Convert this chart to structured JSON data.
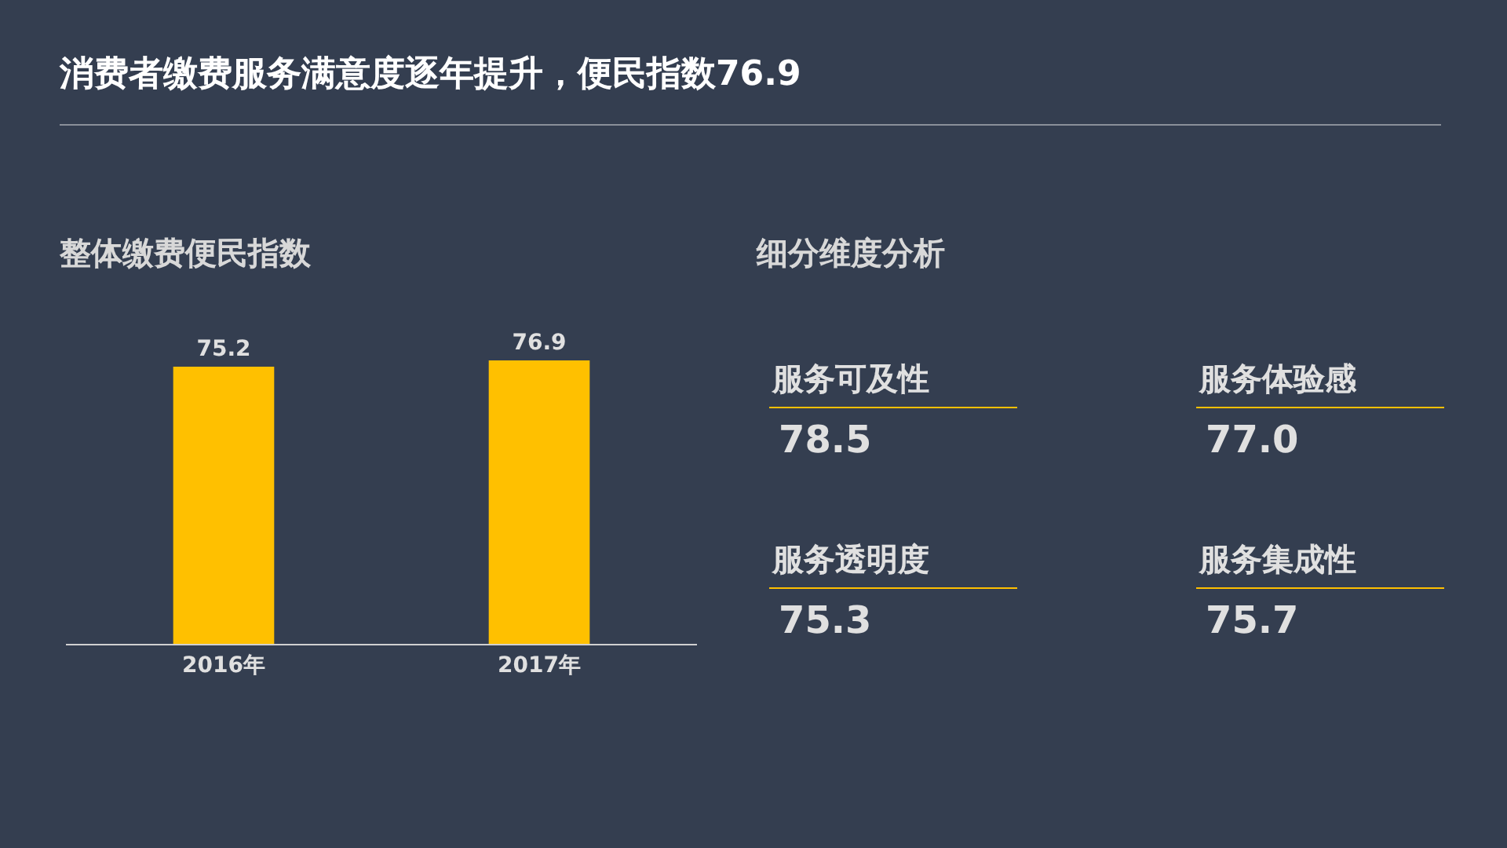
{
  "chart_data": [
    {
      "type": "bar",
      "title": "消费者缴费服务满意度逐年提升，便民指数76.9",
      "subtitle": "整体缴费便民指数",
      "categories": [
        "2016年",
        "2017年"
      ],
      "values": [
        75.2,
        76.9
      ],
      "color": "#ffc000",
      "data_labels": true
    },
    {
      "type": "other",
      "title": "细分维度分析",
      "categories": [
        "服务可及性",
        "服务体验感",
        "服务透明度",
        "服务集成性"
      ],
      "value_labels": [
        "78.5",
        "77.0",
        "75.3",
        "75.7"
      ],
      "color": "#ffc000"
    }
  ]
}
